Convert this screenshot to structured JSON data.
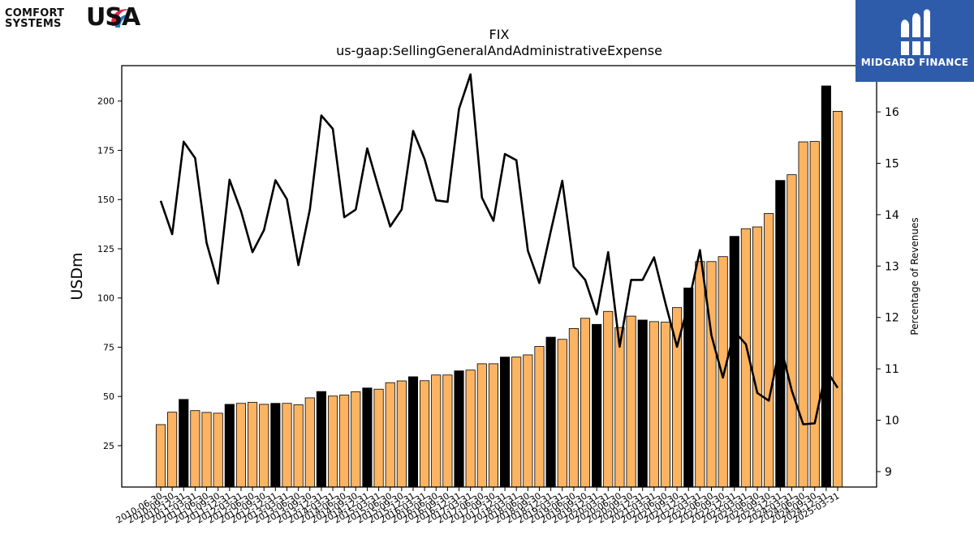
{
  "logos": {
    "left": {
      "line1": "COMFORT",
      "line2": "SYSTEMS",
      "mark": "USA"
    },
    "right": {
      "text": "MIDGARD FINANCE",
      "icon": "midgard-m-icon",
      "background": "#2f5bab"
    }
  },
  "chart_data": {
    "type": "bar",
    "title": "FIX",
    "subtitle": "us-gaap:SellingGeneralAndAdministrativeExpense",
    "ylabel": "USDm",
    "y2label": "Percentage of Revenues",
    "ylim": [
      4,
      218
    ],
    "y2lim": [
      8.7,
      16.9
    ],
    "yticks": [
      25,
      50,
      75,
      100,
      125,
      150,
      175,
      200
    ],
    "y2ticks": [
      9,
      10,
      11,
      12,
      13,
      14,
      15,
      16
    ],
    "grid": false,
    "legend": "none",
    "colors": {
      "bar": "#fdb462",
      "bar_highlight": "#000000",
      "line": "#000000"
    },
    "categories": [
      "2010-06-30",
      "2010-09-30",
      "2010-12-31",
      "2011-03-31",
      "2011-06-30",
      "2011-09-30",
      "2011-12-31",
      "2012-03-31",
      "2012-06-30",
      "2012-09-30",
      "2012-12-31",
      "2013-03-31",
      "2013-06-30",
      "2013-09-30",
      "2013-12-31",
      "2014-03-31",
      "2014-06-30",
      "2014-09-30",
      "2014-12-31",
      "2015-03-31",
      "2015-06-30",
      "2015-09-30",
      "2015-12-31",
      "2016-03-31",
      "2016-06-30",
      "2016-09-30",
      "2016-12-31",
      "2017-03-31",
      "2017-06-30",
      "2017-09-30",
      "2017-12-31",
      "2018-03-31",
      "2018-06-30",
      "2018-09-30",
      "2018-12-31",
      "2019-03-31",
      "2019-06-30",
      "2019-09-30",
      "2019-12-31",
      "2020-03-31",
      "2020-06-30",
      "2020-09-30",
      "2020-12-31",
      "2021-03-31",
      "2021-06-30",
      "2021-09-30",
      "2021-12-31",
      "2022-03-31",
      "2022-06-30",
      "2022-09-30",
      "2022-12-31",
      "2023-03-31",
      "2023-06-30",
      "2023-09-30",
      "2023-12-31",
      "2024-03-31",
      "2024-06-30",
      "2024-09-30",
      "2024-12-31",
      "2025-03-31"
    ],
    "series": [
      {
        "axis": "left",
        "kind": "bar",
        "values": [
          35.7,
          42,
          48.5,
          42.8,
          41.9,
          41.5,
          46,
          46.5,
          47,
          46,
          46.5,
          46.5,
          45.8,
          49.3,
          52.5,
          50.2,
          50.7,
          52.4,
          54.3,
          53.7,
          57,
          57.9,
          60,
          58,
          60.9,
          60.9,
          63,
          63.4,
          66.6,
          66.6,
          70,
          70,
          71.1,
          75.4,
          80.1,
          79,
          84.5,
          89.7,
          86.6,
          93.2,
          85,
          90.8,
          88.8,
          88,
          87.7,
          95.1,
          105.1,
          118.5,
          118.5,
          121,
          131.3,
          135.2,
          136.1,
          142.9,
          159.7,
          162.6,
          179.3,
          179.5,
          207.7,
          194.8
        ],
        "highlight": [
          false,
          false,
          true,
          false,
          false,
          false,
          true,
          false,
          false,
          false,
          true,
          false,
          false,
          false,
          true,
          false,
          false,
          false,
          true,
          false,
          false,
          false,
          true,
          false,
          false,
          false,
          true,
          false,
          false,
          false,
          true,
          false,
          false,
          false,
          true,
          false,
          false,
          false,
          true,
          false,
          false,
          false,
          true,
          false,
          false,
          false,
          true,
          false,
          false,
          false,
          true,
          false,
          false,
          false,
          true,
          false,
          false,
          false,
          true,
          false
        ]
      },
      {
        "axis": "right",
        "kind": "line",
        "values": [
          14.27,
          13.62,
          15.42,
          15.1,
          13.45,
          12.66,
          14.68,
          14.07,
          13.27,
          13.7,
          14.67,
          14.3,
          13.02,
          14.1,
          15.93,
          15.67,
          13.95,
          14.1,
          15.29,
          14.51,
          13.77,
          14.1,
          15.63,
          15.08,
          14.28,
          14.25,
          16.06,
          16.73,
          14.33,
          13.88,
          15.18,
          15.06,
          13.3,
          12.67,
          13.68,
          14.66,
          12.99,
          12.73,
          12.06,
          13.27,
          11.43,
          12.73,
          12.73,
          13.17,
          12.27,
          11.43,
          12.27,
          13.31,
          11.65,
          10.83,
          11.73,
          11.48,
          10.53,
          10.38,
          11.48,
          10.58,
          9.92,
          9.94,
          10.98,
          10.63
        ]
      }
    ]
  }
}
